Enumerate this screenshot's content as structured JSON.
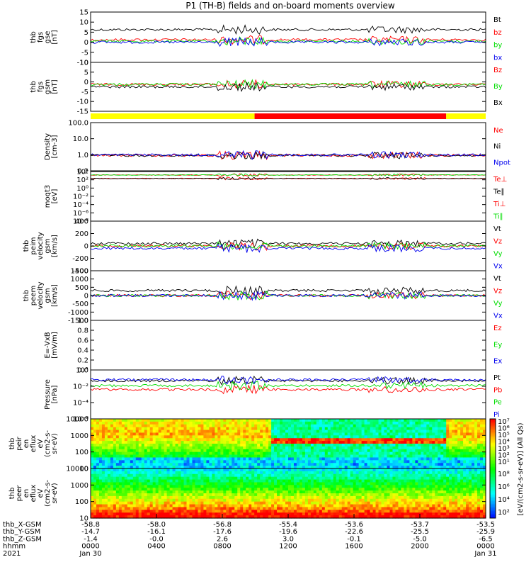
{
  "title": "P1 (TH-B) fields and on-board moments overview",
  "colors": {
    "black": "#000000",
    "red": "#ff0000",
    "green": "#00dd00",
    "blue": "#0000ee",
    "yellow": "#ffff00"
  },
  "chart_data": [
    {
      "type": "line",
      "id": "fgs1",
      "ylabel": [
        "thb",
        "fgs",
        "gse",
        "[nT]"
      ],
      "yticks": [
        "15",
        "10",
        "5",
        "0",
        "-5",
        "-10"
      ],
      "series": [
        {
          "name": "Bt",
          "color": "black",
          "level": 0.65
        },
        {
          "name": "bz",
          "color": "red",
          "level": 0.45
        },
        {
          "name": "by",
          "color": "green",
          "level": 0.42
        },
        {
          "name": "bx",
          "color": "blue",
          "level": 0.4
        }
      ]
    },
    {
      "type": "line",
      "id": "fgs2",
      "ylabel": [
        "thb",
        "fgs",
        "gsm",
        "[nT]"
      ],
      "yticks": [
        "10",
        "5",
        "0",
        "-5",
        "-10",
        "-15"
      ],
      "series": [
        {
          "name": "Bz",
          "color": "red",
          "level": 0.55
        },
        {
          "name": "By",
          "color": "green",
          "level": 0.55
        },
        {
          "name": "Bx",
          "color": "black",
          "level": 0.5
        }
      ]
    },
    {
      "type": "bar",
      "id": "mode_bar",
      "segments": [
        {
          "color": "yellow",
          "from": 0.0,
          "to": 0.415
        },
        {
          "color": "red",
          "from": 0.415,
          "to": 0.9
        },
        {
          "color": "yellow",
          "from": 0.9,
          "to": 1.0
        }
      ]
    },
    {
      "type": "line",
      "id": "density",
      "ylabel": [
        "Density",
        "[cm-3]"
      ],
      "yticks": [
        "100.0",
        "10.0",
        "1.0",
        "0.1"
      ],
      "series": [
        {
          "name": "Ne",
          "color": "red",
          "level": 0.32
        },
        {
          "name": "Ni",
          "color": "black",
          "level": 0.32
        },
        {
          "name": "Npot",
          "color": "blue",
          "level": 0.33
        }
      ]
    },
    {
      "type": "line",
      "id": "temp",
      "ylabel": [
        "moqt3",
        "[eV]"
      ],
      "yticks": [
        "10⁴",
        "10²",
        "10⁰",
        "10⁻²",
        "10⁻⁴",
        "10⁻⁶",
        "10⁻⁸"
      ],
      "series": [
        {
          "name": "Te⊥",
          "color": "red",
          "level": 0.86
        },
        {
          "name": "Te∥",
          "color": "black",
          "level": 0.86
        },
        {
          "name": "Ti⊥",
          "color": "red",
          "level": 0.93
        },
        {
          "name": "Ti∥",
          "color": "green",
          "level": 0.93
        }
      ]
    },
    {
      "type": "line",
      "id": "peim",
      "ylabel": [
        "thb",
        "peim",
        "velocity",
        "gsm",
        "[km/s]"
      ],
      "yticks": [
        "400",
        "200",
        "0",
        "-200",
        "-400"
      ],
      "series": [
        {
          "name": "Vt",
          "color": "black",
          "level": 0.55
        },
        {
          "name": "Vz",
          "color": "red",
          "level": 0.5
        },
        {
          "name": "Vy",
          "color": "green",
          "level": 0.5
        },
        {
          "name": "Vx",
          "color": "blue",
          "level": 0.45
        }
      ]
    },
    {
      "type": "line",
      "id": "peem",
      "ylabel": [
        "thb",
        "peem",
        "velocity",
        "gsm",
        "[km/s]"
      ],
      "yticks": [
        "1500",
        "1000",
        "500",
        "0",
        "-500",
        "-1000",
        "-1500"
      ],
      "series": [
        {
          "name": "Vt",
          "color": "black",
          "level": 0.6
        },
        {
          "name": "Vz",
          "color": "red",
          "level": 0.5
        },
        {
          "name": "Vy",
          "color": "green",
          "level": 0.5
        },
        {
          "name": "Vx",
          "color": "blue",
          "level": 0.5
        }
      ]
    },
    {
      "type": "line",
      "id": "efield",
      "ylabel": [
        "E=-VxB",
        "[mV/m]"
      ],
      "yticks": [
        "1.0",
        "0.8",
        "0.6",
        "0.4",
        "0.2",
        "0.0"
      ],
      "series": [
        {
          "name": "Ez",
          "color": "red",
          "level": 0
        },
        {
          "name": "Ey",
          "color": "green",
          "level": 0
        },
        {
          "name": "Ex",
          "color": "blue",
          "level": 0
        }
      ]
    },
    {
      "type": "line",
      "id": "pressure",
      "ylabel": [
        "Pressure",
        "[nPa]"
      ],
      "yticks": [
        "10°",
        "10⁻²",
        "10⁻⁴",
        "10⁻⁶"
      ],
      "series": [
        {
          "name": "Pt",
          "color": "black",
          "level": 0.78
        },
        {
          "name": "Pb",
          "color": "red",
          "level": 0.6
        },
        {
          "name": "Pe",
          "color": "green",
          "level": 0.68
        },
        {
          "name": "Pi",
          "color": "blue",
          "level": 0.8
        }
      ]
    },
    {
      "type": "heatmap",
      "id": "peir",
      "ylabel": [
        "thb",
        "peir",
        "en",
        "eflux",
        "eV",
        "(cm2-s-",
        "sr-eV)"
      ],
      "yticks": [
        "10000",
        "1000",
        "100",
        "10"
      ]
    },
    {
      "type": "heatmap",
      "id": "peer",
      "ylabel": [
        "thb",
        "peer",
        "en",
        "eflux",
        "eV",
        "(cm2-s-",
        "sr-eV)"
      ],
      "yticks": [
        "10000",
        "1000",
        "100",
        "10"
      ]
    }
  ],
  "colorbar": {
    "label": "[eV/(cm2-s-sr-eV)] (All Qs)",
    "ticks_top": [
      "10⁷",
      "10⁶",
      "10⁵",
      "10⁴",
      "10³",
      "10²",
      "10¹"
    ],
    "ticks_bottom": [
      "10⁸",
      "10⁶",
      "10⁴",
      "10²"
    ]
  },
  "x_axis": {
    "row_labels": [
      "thb_X-GSM",
      "thb_Y-GSM",
      "thb_Z-GSM",
      "hhmm",
      "2021"
    ],
    "columns": [
      [
        "-58.8",
        "-14.7",
        "-1.4",
        "0000",
        "Jan 30"
      ],
      [
        "-58.0",
        "-16.1",
        "-0.0",
        "0400",
        ""
      ],
      [
        "-56.8",
        "-17.6",
        "2.6",
        "0800",
        ""
      ],
      [
        "-55.4",
        "-19.6",
        "3.0",
        "1200",
        ""
      ],
      [
        "-53.6",
        "-22.6",
        "-0.1",
        "1600",
        ""
      ],
      [
        "-53.7",
        "-25.5",
        "-5.0",
        "2000",
        ""
      ],
      [
        "-53.5",
        "-25.9",
        "-6.5",
        "0000",
        "Jan 31"
      ]
    ]
  }
}
